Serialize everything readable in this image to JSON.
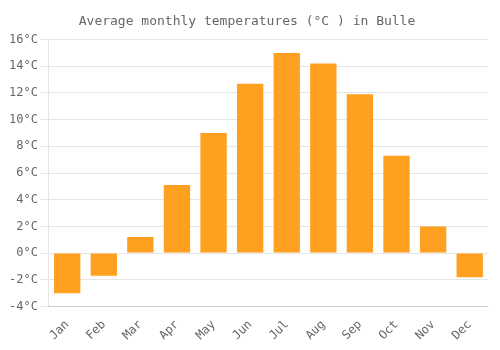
{
  "chart_data": {
    "type": "bar",
    "title": "Average monthly temperatures (°C ) in Bulle",
    "categories": [
      "Jan",
      "Feb",
      "Mar",
      "Apr",
      "May",
      "Jun",
      "Jul",
      "Aug",
      "Sep",
      "Oct",
      "Nov",
      "Dec"
    ],
    "values": [
      -3.0,
      -1.7,
      1.2,
      5.1,
      9.0,
      12.7,
      15.0,
      14.2,
      11.9,
      7.3,
      2.0,
      -1.8
    ],
    "color": "#FFA020",
    "ylim": [
      -4,
      16
    ],
    "yticks": [
      {
        "value": -4,
        "label": "-4°C"
      },
      {
        "value": -2,
        "label": "-2°C"
      },
      {
        "value": 0,
        "label": "0°C"
      },
      {
        "value": 2,
        "label": "2°C"
      },
      {
        "value": 4,
        "label": "4°C"
      },
      {
        "value": 6,
        "label": "6°C"
      },
      {
        "value": 8,
        "label": "8°C"
      },
      {
        "value": 10,
        "label": "10°C"
      },
      {
        "value": 12,
        "label": "12°C"
      },
      {
        "value": 14,
        "label": "14°C"
      },
      {
        "value": 16,
        "label": "16°C"
      }
    ],
    "grid": true
  }
}
